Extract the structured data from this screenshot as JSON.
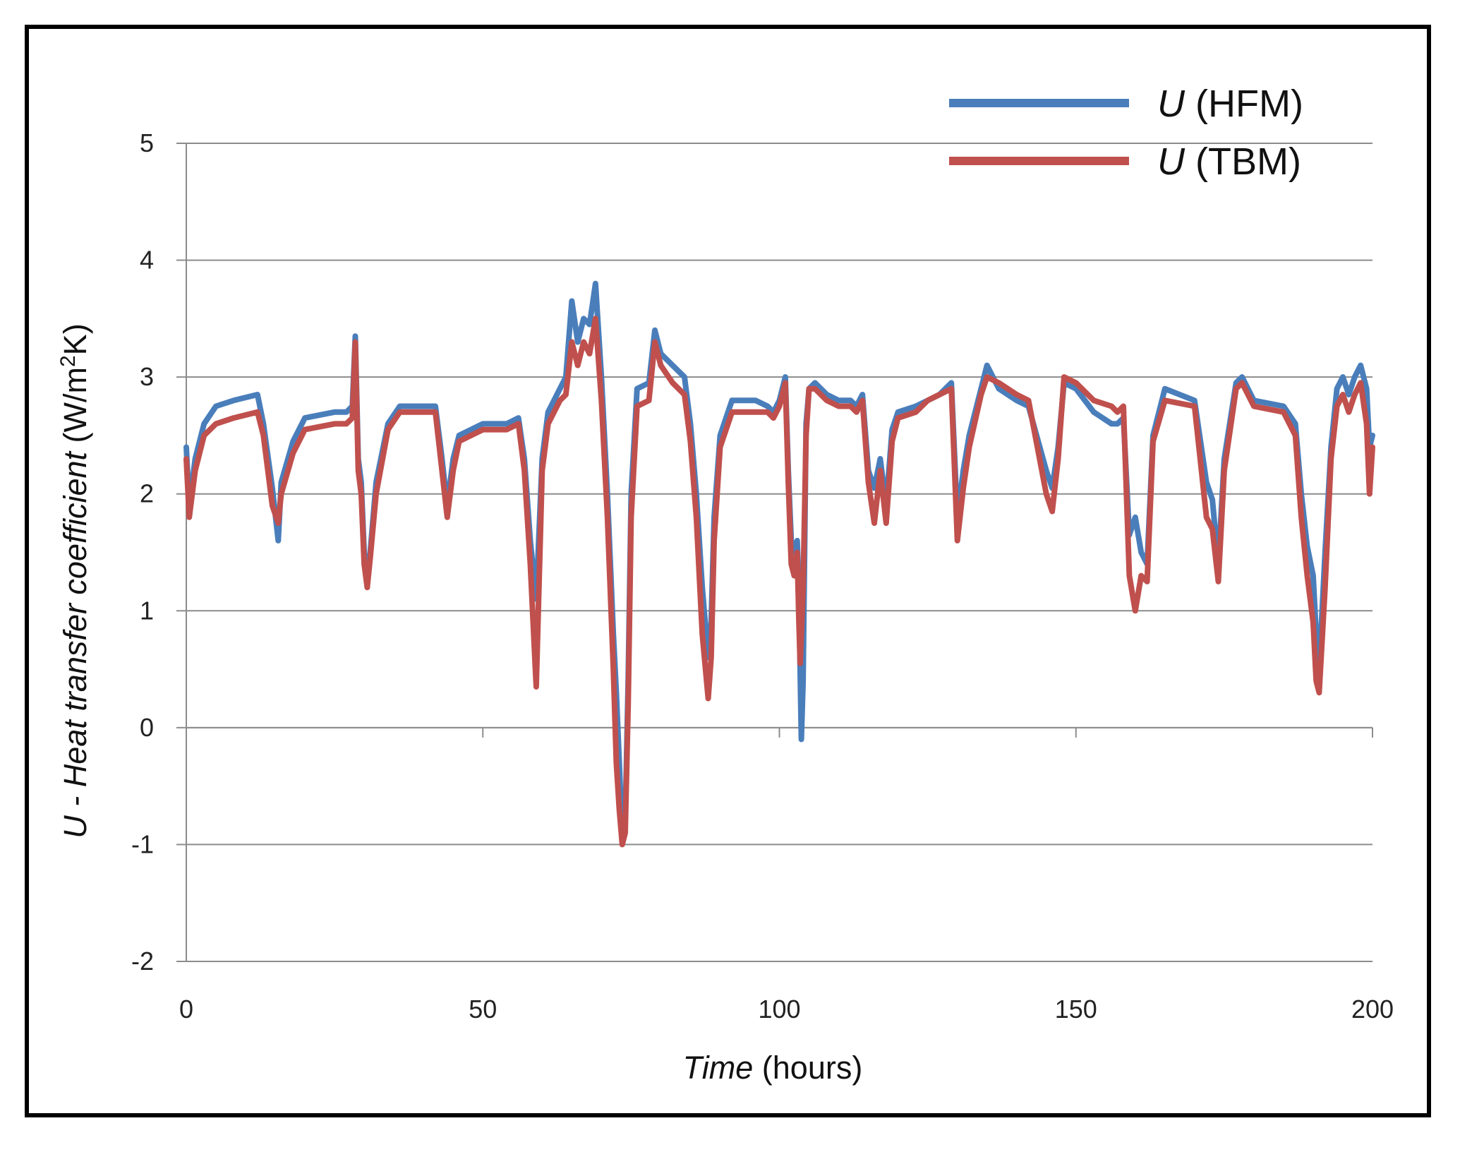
{
  "chart_data": {
    "type": "line",
    "title": "",
    "xlabel": {
      "italic": "Time",
      "rest": " (hours)"
    },
    "ylabel": {
      "prefix": "U - ",
      "italic": "Heat transfer coefficient",
      "unit_a": " (W/m",
      "sup": "2",
      "unit_b": "K)"
    },
    "xlim": [
      0,
      200
    ],
    "ylim": [
      -2,
      5
    ],
    "x_ticks": [
      0,
      50,
      100,
      150,
      200
    ],
    "y_ticks": [
      5,
      4,
      3,
      2,
      1,
      0,
      -1,
      -2
    ],
    "grid": "horizontal",
    "legend_position": "top-right",
    "series": [
      {
        "name": "U (HFM)",
        "legend": {
          "italic": "U",
          "rest": " (HFM)"
        },
        "color": "#4a7ebb",
        "points": [
          [
            0,
            2.4
          ],
          [
            0.5,
            1.9
          ],
          [
            1.5,
            2.3
          ],
          [
            3,
            2.6
          ],
          [
            5,
            2.75
          ],
          [
            8,
            2.8
          ],
          [
            12,
            2.85
          ],
          [
            13,
            2.6
          ],
          [
            14.5,
            2.05
          ],
          [
            15.5,
            1.6
          ],
          [
            16,
            2.1
          ],
          [
            18,
            2.45
          ],
          [
            20,
            2.65
          ],
          [
            25,
            2.7
          ],
          [
            27,
            2.7
          ],
          [
            28,
            2.75
          ],
          [
            28.5,
            3.35
          ],
          [
            29,
            2.3
          ],
          [
            29.5,
            2.1
          ],
          [
            30,
            1.5
          ],
          [
            30.5,
            1.25
          ],
          [
            31,
            1.5
          ],
          [
            32,
            2.1
          ],
          [
            34,
            2.6
          ],
          [
            36,
            2.75
          ],
          [
            40,
            2.75
          ],
          [
            42,
            2.75
          ],
          [
            43,
            2.35
          ],
          [
            44,
            1.9
          ],
          [
            45,
            2.3
          ],
          [
            46,
            2.5
          ],
          [
            50,
            2.6
          ],
          [
            54,
            2.6
          ],
          [
            56,
            2.65
          ],
          [
            57,
            2.3
          ],
          [
            58,
            1.6
          ],
          [
            59,
            1.1
          ],
          [
            60,
            2.3
          ],
          [
            61,
            2.7
          ],
          [
            63,
            2.9
          ],
          [
            64,
            3.0
          ],
          [
            65,
            3.65
          ],
          [
            66,
            3.3
          ],
          [
            67,
            3.5
          ],
          [
            68,
            3.45
          ],
          [
            69,
            3.8
          ],
          [
            70,
            3.0
          ],
          [
            71,
            2.0
          ],
          [
            72,
            0.8
          ],
          [
            72.5,
            0.3
          ],
          [
            73,
            -0.3
          ],
          [
            73.5,
            -0.95
          ],
          [
            74,
            -0.8
          ],
          [
            74.5,
            0.4
          ],
          [
            75,
            2.0
          ],
          [
            76,
            2.9
          ],
          [
            78,
            2.95
          ],
          [
            79,
            3.4
          ],
          [
            80,
            3.2
          ],
          [
            82,
            3.1
          ],
          [
            84,
            3.0
          ],
          [
            85,
            2.6
          ],
          [
            86,
            2.0
          ],
          [
            87,
            1.2
          ],
          [
            88,
            0.6
          ],
          [
            88.5,
            0.9
          ],
          [
            89,
            1.8
          ],
          [
            90,
            2.5
          ],
          [
            92,
            2.8
          ],
          [
            96,
            2.8
          ],
          [
            98,
            2.75
          ],
          [
            99,
            2.7
          ],
          [
            100,
            2.8
          ],
          [
            101,
            3.0
          ],
          [
            101.5,
            2.2
          ],
          [
            102,
            1.6
          ],
          [
            102.5,
            1.5
          ],
          [
            103,
            1.6
          ],
          [
            103.3,
            1.2
          ],
          [
            103.5,
            0.5
          ],
          [
            103.7,
            -0.1
          ],
          [
            104,
            0.4
          ],
          [
            104.5,
            2.6
          ],
          [
            105,
            2.9
          ],
          [
            106,
            2.95
          ],
          [
            108,
            2.85
          ],
          [
            110,
            2.8
          ],
          [
            112,
            2.8
          ],
          [
            113,
            2.75
          ],
          [
            114,
            2.85
          ],
          [
            115,
            2.2
          ],
          [
            116,
            2.05
          ],
          [
            117,
            2.3
          ],
          [
            118,
            1.9
          ],
          [
            119,
            2.55
          ],
          [
            120,
            2.7
          ],
          [
            123,
            2.75
          ],
          [
            125,
            2.8
          ],
          [
            127,
            2.85
          ],
          [
            129,
            2.95
          ],
          [
            130,
            1.8
          ],
          [
            131,
            2.2
          ],
          [
            132,
            2.5
          ],
          [
            134,
            2.9
          ],
          [
            135,
            3.1
          ],
          [
            137,
            2.9
          ],
          [
            140,
            2.8
          ],
          [
            142,
            2.75
          ],
          [
            145,
            2.2
          ],
          [
            146,
            2.05
          ],
          [
            147,
            2.4
          ],
          [
            148,
            2.95
          ],
          [
            150,
            2.9
          ],
          [
            153,
            2.7
          ],
          [
            156,
            2.6
          ],
          [
            157,
            2.6
          ],
          [
            158,
            2.65
          ],
          [
            159,
            1.65
          ],
          [
            160,
            1.8
          ],
          [
            161,
            1.5
          ],
          [
            162,
            1.4
          ],
          [
            163,
            2.5
          ],
          [
            165,
            2.9
          ],
          [
            170,
            2.8
          ],
          [
            172,
            2.1
          ],
          [
            173,
            1.95
          ],
          [
            174,
            1.4
          ],
          [
            175,
            2.3
          ],
          [
            177,
            2.95
          ],
          [
            178,
            3.0
          ],
          [
            180,
            2.8
          ],
          [
            185,
            2.75
          ],
          [
            187,
            2.6
          ],
          [
            188,
            2.0
          ],
          [
            189,
            1.55
          ],
          [
            190,
            1.3
          ],
          [
            190.5,
            0.8
          ],
          [
            191,
            0.5
          ],
          [
            192,
            1.5
          ],
          [
            193,
            2.4
          ],
          [
            194,
            2.9
          ],
          [
            195,
            3.0
          ],
          [
            196,
            2.85
          ],
          [
            197,
            3.0
          ],
          [
            198,
            3.1
          ],
          [
            199,
            2.9
          ],
          [
            199.5,
            2.4
          ],
          [
            200,
            2.5
          ]
        ]
      },
      {
        "name": "U (TBM)",
        "legend": {
          "italic": "U",
          "rest": " (TBM)"
        },
        "color": "#c0504d",
        "points": [
          [
            0,
            2.3
          ],
          [
            0.5,
            1.8
          ],
          [
            1.5,
            2.2
          ],
          [
            3,
            2.5
          ],
          [
            5,
            2.6
          ],
          [
            8,
            2.65
          ],
          [
            12,
            2.7
          ],
          [
            13,
            2.5
          ],
          [
            14.5,
            1.9
          ],
          [
            15.5,
            1.75
          ],
          [
            16,
            2.0
          ],
          [
            18,
            2.35
          ],
          [
            20,
            2.55
          ],
          [
            25,
            2.6
          ],
          [
            27,
            2.6
          ],
          [
            28,
            2.65
          ],
          [
            28.5,
            3.3
          ],
          [
            29,
            2.2
          ],
          [
            29.5,
            2.0
          ],
          [
            30,
            1.4
          ],
          [
            30.5,
            1.2
          ],
          [
            31,
            1.45
          ],
          [
            32,
            2.0
          ],
          [
            34,
            2.55
          ],
          [
            36,
            2.7
          ],
          [
            40,
            2.7
          ],
          [
            42,
            2.7
          ],
          [
            43,
            2.25
          ],
          [
            44,
            1.8
          ],
          [
            45,
            2.2
          ],
          [
            46,
            2.45
          ],
          [
            50,
            2.55
          ],
          [
            54,
            2.55
          ],
          [
            56,
            2.6
          ],
          [
            57,
            2.2
          ],
          [
            58,
            1.4
          ],
          [
            59,
            0.35
          ],
          [
            60,
            2.2
          ],
          [
            61,
            2.6
          ],
          [
            63,
            2.8
          ],
          [
            64,
            2.85
          ],
          [
            65,
            3.3
          ],
          [
            66,
            3.1
          ],
          [
            67,
            3.3
          ],
          [
            68,
            3.2
          ],
          [
            69,
            3.5
          ],
          [
            70,
            2.8
          ],
          [
            71,
            1.8
          ],
          [
            72,
            0.5
          ],
          [
            72.5,
            -0.3
          ],
          [
            73,
            -0.7
          ],
          [
            73.5,
            -1.0
          ],
          [
            74,
            -0.9
          ],
          [
            74.5,
            0.2
          ],
          [
            75,
            1.8
          ],
          [
            76,
            2.75
          ],
          [
            78,
            2.8
          ],
          [
            79,
            3.3
          ],
          [
            80,
            3.1
          ],
          [
            82,
            2.95
          ],
          [
            84,
            2.85
          ],
          [
            85,
            2.45
          ],
          [
            86,
            1.8
          ],
          [
            87,
            0.8
          ],
          [
            88,
            0.25
          ],
          [
            88.5,
            0.6
          ],
          [
            89,
            1.6
          ],
          [
            90,
            2.4
          ],
          [
            92,
            2.7
          ],
          [
            96,
            2.7
          ],
          [
            98,
            2.7
          ],
          [
            99,
            2.65
          ],
          [
            100,
            2.75
          ],
          [
            101,
            2.95
          ],
          [
            101.5,
            2.1
          ],
          [
            102,
            1.4
          ],
          [
            102.5,
            1.3
          ],
          [
            103,
            1.5
          ],
          [
            103.3,
            0.9
          ],
          [
            103.5,
            0.55
          ],
          [
            103.7,
            0.8
          ],
          [
            104,
            1.2
          ],
          [
            104.5,
            2.5
          ],
          [
            105,
            2.9
          ],
          [
            106,
            2.9
          ],
          [
            108,
            2.8
          ],
          [
            110,
            2.75
          ],
          [
            112,
            2.75
          ],
          [
            113,
            2.7
          ],
          [
            114,
            2.8
          ],
          [
            115,
            2.1
          ],
          [
            116,
            1.75
          ],
          [
            117,
            2.2
          ],
          [
            118,
            1.75
          ],
          [
            119,
            2.45
          ],
          [
            120,
            2.65
          ],
          [
            123,
            2.7
          ],
          [
            125,
            2.8
          ],
          [
            127,
            2.85
          ],
          [
            129,
            2.9
          ],
          [
            130,
            1.6
          ],
          [
            131,
            2.05
          ],
          [
            132,
            2.4
          ],
          [
            134,
            2.85
          ],
          [
            135,
            3.0
          ],
          [
            137,
            2.95
          ],
          [
            140,
            2.85
          ],
          [
            142,
            2.8
          ],
          [
            145,
            2.0
          ],
          [
            146,
            1.85
          ],
          [
            147,
            2.3
          ],
          [
            148,
            3.0
          ],
          [
            150,
            2.95
          ],
          [
            153,
            2.8
          ],
          [
            156,
            2.75
          ],
          [
            157,
            2.7
          ],
          [
            158,
            2.75
          ],
          [
            159,
            1.3
          ],
          [
            160,
            1.0
          ],
          [
            161,
            1.3
          ],
          [
            162,
            1.25
          ],
          [
            163,
            2.45
          ],
          [
            165,
            2.8
          ],
          [
            170,
            2.75
          ],
          [
            172,
            1.8
          ],
          [
            173,
            1.7
          ],
          [
            174,
            1.25
          ],
          [
            175,
            2.2
          ],
          [
            177,
            2.9
          ],
          [
            178,
            2.95
          ],
          [
            180,
            2.75
          ],
          [
            185,
            2.7
          ],
          [
            187,
            2.5
          ],
          [
            188,
            1.8
          ],
          [
            189,
            1.3
          ],
          [
            190,
            0.9
          ],
          [
            190.5,
            0.4
          ],
          [
            191,
            0.3
          ],
          [
            192,
            1.2
          ],
          [
            193,
            2.3
          ],
          [
            194,
            2.75
          ],
          [
            195,
            2.85
          ],
          [
            196,
            2.7
          ],
          [
            197,
            2.85
          ],
          [
            198,
            2.95
          ],
          [
            199,
            2.6
          ],
          [
            199.5,
            2.0
          ],
          [
            200,
            2.4
          ]
        ]
      }
    ]
  }
}
